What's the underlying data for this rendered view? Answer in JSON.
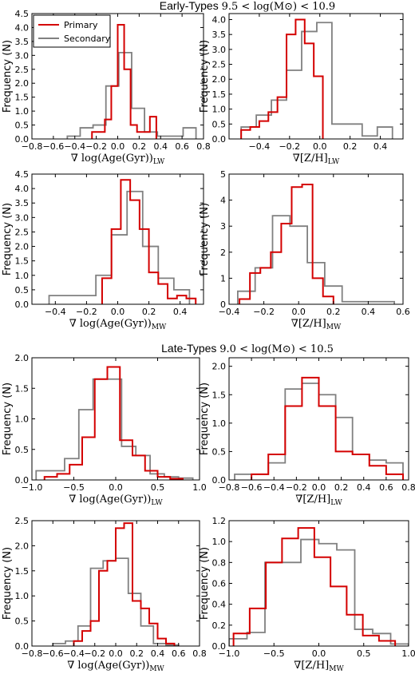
{
  "section_titles": [
    {
      "label": "Early-Types",
      "range": "9.5 < log(M⊙) < 10.9"
    },
    {
      "label": "Late-Types",
      "range": "9.0 < log(M⊙) < 10.5"
    }
  ],
  "legend": [
    {
      "name": "Primary",
      "color": "#d40000"
    },
    {
      "name": "Secondary",
      "color": "#808080"
    }
  ],
  "chart_data": [
    {
      "type": "histogram",
      "title": "",
      "ylabel": "Frequency (N)",
      "xlabel": "∇ log(Age(Gyr))LW",
      "xlim": [
        -0.8,
        0.8
      ],
      "ylim": [
        0,
        4.5
      ],
      "xticks": [
        -0.8,
        -0.6,
        -0.4,
        -0.2,
        0.0,
        0.2,
        0.4,
        0.6,
        0.8
      ],
      "xtick_labels": [
        "−0.8",
        "−0.6",
        "−0.4",
        "−0.2",
        "0.0",
        "0.2",
        "0.4",
        "0.6",
        "0.8"
      ],
      "yticks": [
        0,
        0.5,
        1.0,
        1.5,
        2.0,
        2.5,
        3.0,
        3.5,
        4.0,
        4.5
      ],
      "ytick_labels": [
        "0.0",
        "0.5",
        "1.0",
        "1.5",
        "2.0",
        "2.5",
        "3.0",
        "3.5",
        "4.0",
        "4.5"
      ],
      "series": [
        {
          "name": "Primary",
          "color": "#d40000",
          "edges": [
            -0.24,
            -0.18,
            -0.12,
            -0.06,
            0.0,
            0.06,
            0.12,
            0.18,
            0.24,
            0.3,
            0.36
          ],
          "values": [
            0.25,
            0.25,
            0.7,
            1.9,
            4.1,
            2.5,
            0.5,
            0.25,
            0.25,
            0.8
          ]
        },
        {
          "name": "Secondary",
          "color": "#808080",
          "edges": [
            -0.47,
            -0.35,
            -0.23,
            -0.11,
            0.01,
            0.13,
            0.25,
            0.37,
            0.49,
            0.61,
            0.73
          ],
          "values": [
            0.1,
            0.4,
            0.5,
            1.9,
            3.1,
            1.1,
            0.25,
            0.1,
            0.1,
            0.4
          ]
        }
      ]
    },
    {
      "type": "histogram",
      "title": "",
      "ylabel": "Frequency (N)",
      "xlabel": "∇[Z/H]LW",
      "xlim": [
        -0.6,
        0.55
      ],
      "ylim": [
        0,
        4.2
      ],
      "xticks": [
        -0.4,
        -0.2,
        0.0,
        0.2,
        0.4
      ],
      "xtick_labels": [
        "−0.4",
        "−0.2",
        "0.0",
        "0.2",
        "0.4"
      ],
      "yticks": [
        0,
        0.5,
        1.0,
        1.5,
        2.0,
        2.5,
        3.0,
        3.5,
        4.0
      ],
      "ytick_labels": [
        "0.0",
        "0.5",
        "1.0",
        "1.5",
        "2.0",
        "2.5",
        "3.0",
        "3.5",
        "4.0"
      ],
      "series": [
        {
          "name": "Primary",
          "color": "#d40000",
          "edges": [
            -0.52,
            -0.46,
            -0.4,
            -0.34,
            -0.28,
            -0.22,
            -0.16,
            -0.1,
            -0.04,
            0.02
          ],
          "values": [
            0.3,
            0.4,
            0.6,
            0.9,
            1.4,
            3.5,
            4.0,
            3.2,
            2.1
          ]
        },
        {
          "name": "Secondary",
          "color": "#808080",
          "edges": [
            -0.52,
            -0.42,
            -0.32,
            -0.22,
            -0.12,
            -0.02,
            0.08,
            0.18,
            0.28,
            0.38,
            0.48
          ],
          "values": [
            0.4,
            0.8,
            1.3,
            2.3,
            3.6,
            3.9,
            0.5,
            0.5,
            0.1,
            0.4
          ]
        }
      ]
    },
    {
      "type": "histogram",
      "title": "",
      "ylabel": "Frequency (N)",
      "xlabel": "∇ log(Age(Gyr))MW",
      "xlim": [
        -0.55,
        0.55
      ],
      "ylim": [
        0,
        4.5
      ],
      "xticks": [
        -0.4,
        -0.2,
        0.0,
        0.2,
        0.4
      ],
      "xtick_labels": [
        "−0.4",
        "−0.2",
        "0.0",
        "0.2",
        "0.4"
      ],
      "yticks": [
        0,
        0.5,
        1.0,
        1.5,
        2.0,
        2.5,
        3.0,
        3.5,
        4.0,
        4.5
      ],
      "ytick_labels": [
        "0.0",
        "0.5",
        "1.0",
        "1.5",
        "2.0",
        "2.5",
        "3.0",
        "3.5",
        "4.0",
        "4.5"
      ],
      "series": [
        {
          "name": "Primary",
          "color": "#d40000",
          "edges": [
            -0.1,
            -0.04,
            0.02,
            0.08,
            0.14,
            0.2,
            0.26,
            0.32,
            0.38,
            0.44,
            0.5
          ],
          "values": [
            0.9,
            2.6,
            4.3,
            3.6,
            2.6,
            1.1,
            0.7,
            0.2,
            0.3,
            0.2
          ]
        },
        {
          "name": "Secondary",
          "color": "#808080",
          "edges": [
            -0.44,
            -0.34,
            -0.24,
            -0.14,
            -0.04,
            0.06,
            0.16,
            0.26,
            0.36,
            0.46
          ],
          "values": [
            0.3,
            0.3,
            0.3,
            1.0,
            2.4,
            3.9,
            2.0,
            0.9,
            0.5
          ]
        }
      ]
    },
    {
      "type": "histogram",
      "title": "",
      "ylabel": "Frequency (N)",
      "xlabel": "∇[Z/H]MW",
      "xlim": [
        -0.4,
        0.6
      ],
      "ylim": [
        0,
        5
      ],
      "xticks": [
        -0.4,
        -0.2,
        0.0,
        0.2,
        0.4,
        0.6
      ],
      "xtick_labels": [
        "−0.4",
        "−0.2",
        "0.0",
        "0.2",
        "0.4",
        "0.6"
      ],
      "yticks": [
        0,
        1,
        2,
        3,
        4,
        5
      ],
      "ytick_labels": [
        "0",
        "1",
        "2",
        "3",
        "4",
        "5"
      ],
      "series": [
        {
          "name": "Primary",
          "color": "#d40000",
          "edges": [
            -0.34,
            -0.28,
            -0.22,
            -0.16,
            -0.1,
            -0.04,
            0.02,
            0.08,
            0.14,
            0.2
          ],
          "values": [
            0.2,
            1.2,
            1.4,
            2.0,
            3.1,
            4.5,
            4.6,
            1.0,
            0.3
          ]
        },
        {
          "name": "Secondary",
          "color": "#808080",
          "edges": [
            -0.35,
            -0.25,
            -0.15,
            -0.05,
            0.05,
            0.15,
            0.25,
            0.35,
            0.45,
            0.55
          ],
          "values": [
            0.5,
            1.4,
            3.4,
            3.0,
            1.6,
            0.7,
            0.1,
            0.1,
            0.1
          ]
        }
      ]
    },
    {
      "type": "histogram",
      "title": "",
      "ylabel": "Frequency (N)",
      "xlabel": "∇ log(Age(Gyr))LW",
      "xlim": [
        -1.0,
        1.0
      ],
      "ylim": [
        0,
        2.0
      ],
      "xticks": [
        -1.0,
        -0.5,
        0.0,
        0.5,
        1.0
      ],
      "xtick_labels": [
        "−1.0",
        "−0.5",
        "0.0",
        "0.5",
        "1.0"
      ],
      "yticks": [
        0,
        0.5,
        1.0,
        1.5,
        2.0
      ],
      "ytick_labels": [
        "0.0",
        "0.5",
        "1.0",
        "1.5",
        "2.0"
      ],
      "series": [
        {
          "name": "Primary",
          "color": "#d40000",
          "edges": [
            -0.85,
            -0.7,
            -0.55,
            -0.4,
            -0.25,
            -0.1,
            0.05,
            0.2,
            0.35,
            0.5,
            0.65,
            0.8
          ],
          "values": [
            0.05,
            0.1,
            0.25,
            0.7,
            1.65,
            1.85,
            0.65,
            0.4,
            0.15,
            0.05,
            0.02
          ]
        },
        {
          "name": "Secondary",
          "color": "#808080",
          "edges": [
            -0.95,
            -0.78,
            -0.61,
            -0.44,
            -0.27,
            -0.1,
            0.07,
            0.24,
            0.41,
            0.58,
            0.75,
            0.92
          ],
          "values": [
            0.15,
            0.15,
            0.35,
            1.15,
            1.65,
            1.65,
            0.55,
            0.4,
            0.1,
            0.05,
            0.03
          ]
        }
      ]
    },
    {
      "type": "histogram",
      "title": "",
      "ylabel": "Frequency (N)",
      "xlabel": "∇[Z/H]LW",
      "xlim": [
        -0.8,
        0.8
      ],
      "ylim": [
        0,
        2.15
      ],
      "xticks": [
        -0.8,
        -0.6,
        -0.4,
        -0.2,
        0.0,
        0.2,
        0.4,
        0.6,
        0.8
      ],
      "xtick_labels": [
        "−0.8",
        "−0.6",
        "−0.4",
        "−0.2",
        "0.0",
        "0.2",
        "0.4",
        "0.6",
        "0.8"
      ],
      "yticks": [
        0,
        0.5,
        1.0,
        1.5,
        2.0
      ],
      "ytick_labels": [
        "0.0",
        "0.5",
        "1.0",
        "1.5",
        "2.0"
      ],
      "series": [
        {
          "name": "Primary",
          "color": "#d40000",
          "edges": [
            -0.6,
            -0.45,
            -0.3,
            -0.15,
            0.0,
            0.15,
            0.3,
            0.45,
            0.6,
            0.75
          ],
          "values": [
            0.1,
            0.45,
            1.3,
            1.8,
            1.3,
            0.5,
            0.45,
            0.25,
            0.1
          ]
        },
        {
          "name": "Secondary",
          "color": "#808080",
          "edges": [
            -0.75,
            -0.6,
            -0.45,
            -0.3,
            -0.15,
            0.0,
            0.15,
            0.3,
            0.45,
            0.6,
            0.75
          ],
          "values": [
            0.1,
            0.1,
            0.3,
            1.6,
            1.7,
            1.5,
            1.1,
            0.45,
            0.35,
            0.3
          ]
        }
      ]
    },
    {
      "type": "histogram",
      "title": "",
      "ylabel": "Frequency (N)",
      "xlabel": "∇ log(Age(Gyr))MW",
      "xlim": [
        -0.8,
        0.8
      ],
      "ylim": [
        0,
        2.5
      ],
      "xticks": [
        -0.8,
        -0.6,
        -0.4,
        -0.2,
        0.0,
        0.2,
        0.4,
        0.6,
        0.8
      ],
      "xtick_labels": [
        "−0.8",
        "−0.6",
        "−0.4",
        "−0.2",
        "0.0",
        "0.2",
        "0.4",
        "0.6",
        "0.8"
      ],
      "yticks": [
        0,
        0.5,
        1.0,
        1.5,
        2.0,
        2.5
      ],
      "ytick_labels": [
        "0.0",
        "0.5",
        "1.0",
        "1.5",
        "2.0",
        "2.5"
      ],
      "series": [
        {
          "name": "Primary",
          "color": "#d40000",
          "edges": [
            -0.4,
            -0.32,
            -0.24,
            -0.16,
            -0.08,
            0.0,
            0.08,
            0.16,
            0.24,
            0.32,
            0.4,
            0.48,
            0.56
          ],
          "values": [
            0.1,
            0.3,
            0.5,
            1.5,
            1.7,
            2.35,
            2.45,
            0.9,
            0.75,
            0.45,
            0.15,
            0.05
          ]
        },
        {
          "name": "Secondary",
          "color": "#808080",
          "edges": [
            -0.6,
            -0.48,
            -0.36,
            -0.24,
            -0.12,
            0.0,
            0.12,
            0.24,
            0.36,
            0.48,
            0.6
          ],
          "values": [
            0.05,
            0.1,
            0.4,
            1.55,
            1.7,
            1.75,
            1.05,
            0.4,
            0.05,
            0.02
          ]
        }
      ]
    },
    {
      "type": "histogram",
      "title": "",
      "ylabel": "Frequency (N)",
      "xlabel": "∇[Z/H]MW",
      "xlim": [
        -1.0,
        1.0
      ],
      "ylim": [
        0,
        1.2
      ],
      "xticks": [
        -1.0,
        -0.5,
        0.0,
        0.5,
        1.0
      ],
      "xtick_labels": [
        "−1.0",
        "−0.5",
        "0.0",
        "0.5",
        "1.0"
      ],
      "yticks": [
        0,
        0.2,
        0.4,
        0.6,
        0.8,
        1.0,
        1.2
      ],
      "ytick_labels": [
        "0.0",
        "0.2",
        "0.4",
        "0.6",
        "0.8",
        "1.0",
        "1.2"
      ],
      "series": [
        {
          "name": "Primary",
          "color": "#d40000",
          "edges": [
            -0.95,
            -0.77,
            -0.59,
            -0.41,
            -0.23,
            -0.05,
            0.13,
            0.31,
            0.49,
            0.67,
            0.85
          ],
          "values": [
            0.12,
            0.36,
            0.8,
            1.03,
            1.13,
            0.85,
            0.57,
            0.3,
            0.1,
            0.05
          ]
        },
        {
          "name": "Secondary",
          "color": "#808080",
          "edges": [
            -1.0,
            -0.8,
            -0.6,
            -0.4,
            -0.2,
            0.0,
            0.2,
            0.4,
            0.6,
            0.8,
            1.0
          ],
          "values": [
            0.07,
            0.13,
            0.8,
            0.8,
            1.02,
            0.98,
            0.92,
            0.16,
            0.12,
            0.02
          ]
        }
      ]
    }
  ]
}
